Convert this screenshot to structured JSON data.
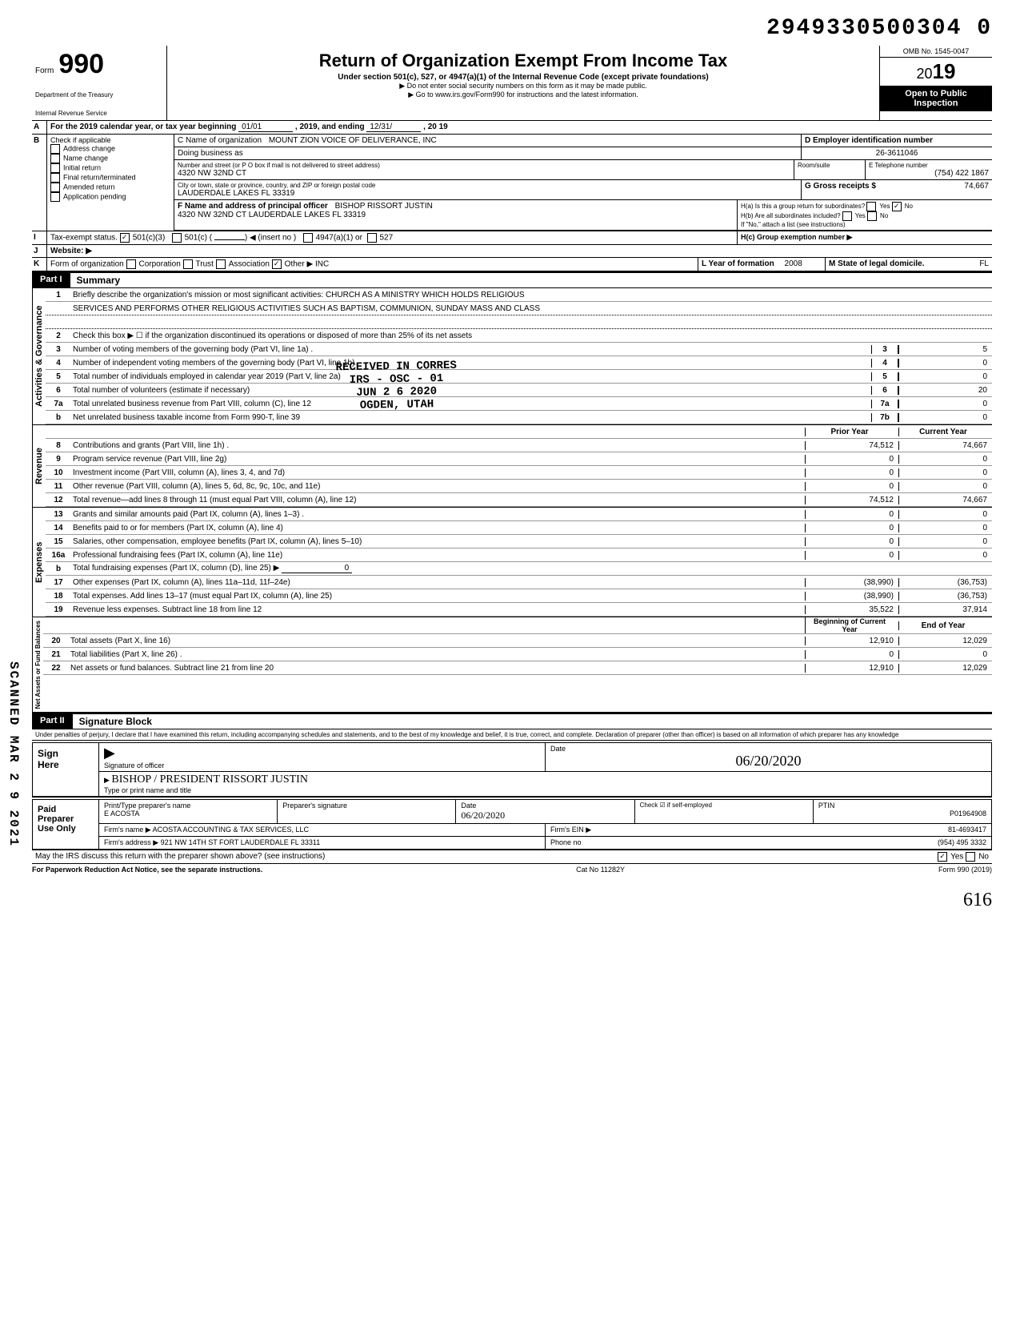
{
  "doc_number": "2949330500304 0",
  "form": {
    "label": "Form",
    "number": "990",
    "dept1": "Department of the Treasury",
    "dept2": "Internal Revenue Service"
  },
  "title": {
    "main": "Return of Organization Exempt From Income Tax",
    "sub1": "Under section 501(c), 527, or 4947(a)(1) of the Internal Revenue Code (except private foundations)",
    "sub2": "▶ Do not enter social security numbers on this form as it may be made public.",
    "sub3": "▶ Go to www.irs.gov/Form990 for instructions and the latest information."
  },
  "yearbox": {
    "omb": "OMB No. 1545-0047",
    "year_prefix": "20",
    "year_suffix": "19",
    "open1": "Open to Public",
    "open2": "Inspection"
  },
  "lineA": {
    "label": "For the 2019 calendar year, or tax year beginning",
    "begin": "01/01",
    "mid": ", 2019, and ending",
    "end_m": "12/31/",
    "end_y": ", 20  19"
  },
  "checkB": {
    "label": "Check if applicable",
    "opts": [
      "Address change",
      "Name change",
      "Initial return",
      "Final return/terminated",
      "Amended return",
      "Application pending"
    ]
  },
  "C": {
    "name_label": "C Name of organization",
    "name": "MOUNT ZION VOICE OF DELIVERANCE, INC",
    "dba_label": "Doing business as",
    "addr_label": "Number and street (or P O  box if mail is not delivered to street address)",
    "addr": "4320 NW 32ND CT",
    "room_label": "Room/suite",
    "city_label": "City or town, state or province, country, and ZIP or foreign postal code",
    "city": "LAUDERDALE LAKES FL 33319"
  },
  "D": {
    "label": "D Employer identification number",
    "val": "26-3611046"
  },
  "E": {
    "label": "E Telephone number",
    "val": "(754) 422 1867"
  },
  "G": {
    "label": "G Gross receipts $",
    "val": "74,667"
  },
  "F": {
    "label": "F Name and address of principal officer",
    "name": "BISHOP RISSORT JUSTIN",
    "addr": "4320 NW 32ND CT  LAUDERDALE LAKES FL 33319"
  },
  "H": {
    "a": "H(a) Is this a group return for subordinates?",
    "b": "H(b) Are all subordinates included?",
    "yes": "Yes",
    "no": "No",
    "note": "If \"No,\" attach a list (see instructions)",
    "c": "H(c) Group exemption number ▶"
  },
  "I": {
    "label": "Tax-exempt status.",
    "opt1": "501(c)(3)",
    "opt2": "501(c) (",
    "opt2b": ") ◀ (insert no )",
    "opt3": "4947(a)(1)  or",
    "opt4": "527"
  },
  "J": {
    "label": "Website: ▶"
  },
  "K": {
    "label": "Form of organization",
    "opts": [
      "Corporation",
      "Trust",
      "Association",
      "Other ▶"
    ],
    "other_val": "INC",
    "L_label": "L Year of formation",
    "L_val": "2008",
    "M_label": "M State of legal domicile.",
    "M_val": "FL"
  },
  "part1": {
    "tag": "Part I",
    "title": "Summary",
    "mission_label": "Briefly describe the organization's mission or most significant activities:",
    "mission1": "CHURCH AS A MINISTRY WHICH HOLDS RELIGIOUS",
    "mission2": "SERVICES AND PERFORMS OTHER RELIGIOUS ACTIVITIES SUCH AS BAPTISM, COMMUNION, SUNDAY MASS AND CLASS",
    "line2": "Check this box ▶ ☐ if the organization discontinued its operations or disposed of more than 25% of its net assets",
    "lines_gov": [
      {
        "no": "3",
        "desc": "Number of voting members of the governing body (Part VI, line 1a) .",
        "num": "3",
        "val": "5"
      },
      {
        "no": "4",
        "desc": "Number of independent voting members of the governing body (Part VI, line 1b)",
        "num": "4",
        "val": "0"
      },
      {
        "no": "5",
        "desc": "Total number of individuals employed in calendar year 2019 (Part V, line 2a)",
        "num": "5",
        "val": "0"
      },
      {
        "no": "6",
        "desc": "Total number of volunteers (estimate if necessary)",
        "num": "6",
        "val": "20"
      },
      {
        "no": "7a",
        "desc": "Total unrelated business revenue from Part VIII, column (C), line 12",
        "num": "7a",
        "val": "0"
      },
      {
        "no": "b",
        "desc": "Net unrelated business taxable income from Form 990-T, line 39",
        "num": "7b",
        "val": "0"
      }
    ],
    "col_prior": "Prior Year",
    "col_curr": "Current Year",
    "revenue": [
      {
        "no": "8",
        "desc": "Contributions and grants (Part VIII, line 1h) .",
        "p": "74,512",
        "c": "74,667"
      },
      {
        "no": "9",
        "desc": "Program service revenue (Part VIII, line 2g)",
        "p": "0",
        "c": "0"
      },
      {
        "no": "10",
        "desc": "Investment income (Part VIII, column (A), lines 3, 4, and 7d)",
        "p": "0",
        "c": "0"
      },
      {
        "no": "11",
        "desc": "Other revenue (Part VIII, column (A), lines 5, 6d, 8c, 9c, 10c, and 11e)",
        "p": "0",
        "c": "0"
      },
      {
        "no": "12",
        "desc": "Total revenue—add lines 8 through 11 (must equal Part VIII, column (A), line 12)",
        "p": "74,512",
        "c": "74,667"
      }
    ],
    "expenses": [
      {
        "no": "13",
        "desc": "Grants and similar amounts paid (Part IX, column (A), lines 1–3) .",
        "p": "0",
        "c": "0"
      },
      {
        "no": "14",
        "desc": "Benefits paid to or for members (Part IX, column (A), line 4)",
        "p": "0",
        "c": "0"
      },
      {
        "no": "15",
        "desc": "Salaries, other compensation, employee benefits (Part IX, column (A), lines 5–10)",
        "p": "0",
        "c": "0"
      },
      {
        "no": "16a",
        "desc": "Professional fundraising fees (Part IX, column (A),  line 11e)",
        "p": "0",
        "c": "0"
      },
      {
        "no": "b",
        "desc": "Total fundraising expenses (Part IX, column (D), line 25) ▶",
        "p": "",
        "c": "",
        "inline": "0"
      },
      {
        "no": "17",
        "desc": "Other expenses (Part IX, column (A), lines 11a–11d, 11f–24e)",
        "p": "(38,990)",
        "c": "(36,753)"
      },
      {
        "no": "18",
        "desc": "Total expenses. Add lines 13–17 (must equal Part IX, column (A), line 25)",
        "p": "(38,990)",
        "c": "(36,753)"
      },
      {
        "no": "19",
        "desc": "Revenue less expenses. Subtract line 18 from line 12",
        "p": "35,522",
        "c": "37,914"
      }
    ],
    "col_begin": "Beginning of Current Year",
    "col_end": "End of Year",
    "netassets": [
      {
        "no": "20",
        "desc": "Total assets (Part X, line 16)",
        "p": "12,910",
        "c": "12,029"
      },
      {
        "no": "21",
        "desc": "Total liabilities (Part X, line 26) .",
        "p": "0",
        "c": "0"
      },
      {
        "no": "22",
        "desc": "Net assets or fund balances. Subtract line 21 from line 20",
        "p": "12,910",
        "c": "12,029"
      }
    ],
    "vert_gov": "Activities & Governance",
    "vert_rev": "Revenue",
    "vert_exp": "Expenses",
    "vert_net": "Net Assets or\nFund Balances"
  },
  "part2": {
    "tag": "Part II",
    "title": "Signature Block",
    "perjury": "Under penalties of perjury, I declare that I have examined this return, including accompanying schedules and statements, and to the best of my knowledge  and belief, it is true, correct, and complete. Declaration of preparer (other than officer) is based on all information of which preparer has any knowledge"
  },
  "sign": {
    "side1": "Sign",
    "side2": "Here",
    "sig_label": "Signature of officer",
    "sig_hand": "",
    "date_label": "Date",
    "date_val": "06/20/2020",
    "name_label": "Type or print name and title",
    "name_hand": "BISHOP / PRESIDENT   RISSORT JUSTIN"
  },
  "paid": {
    "side1": "Paid",
    "side2": "Preparer",
    "side3": "Use Only",
    "p_label": "Print/Type preparer's name",
    "p_name": "E ACOSTA",
    "sig_label": "Preparer's signature",
    "date_label": "Date",
    "date_val": "06/20/2020",
    "check_label": "Check ☑ if self-employed",
    "ptin_label": "PTIN",
    "ptin": "P01964908",
    "firm_label": "Firm's name   ▶",
    "firm": "ACOSTA ACCOUNTING & TAX SERVICES, LLC",
    "ein_label": "Firm's EIN  ▶",
    "ein": "81-4693417",
    "addr_label": "Firm's address ▶",
    "addr": "921 NW 14TH ST FORT LAUDERDALE FL 33311",
    "phone_label": "Phone no",
    "phone": "(954) 495 3332"
  },
  "discuss": {
    "q": "May the IRS discuss this return with the preparer shown above? (see instructions)",
    "yes": "Yes",
    "no": "No"
  },
  "footer": {
    "left": "For Paperwork Reduction Act Notice, see the separate instructions.",
    "mid": "Cat No 11282Y",
    "right": "Form 990 (2019)"
  },
  "stamp": {
    "l1": "RECEIVED IN CORRES",
    "l2": "IRS - OSC - 01",
    "l3": "JUN  2 6  2020",
    "l4": "OGDEN, UTAH"
  },
  "scanned": "SCANNED MAR 2 9 2021",
  "hand_bottom": "616"
}
